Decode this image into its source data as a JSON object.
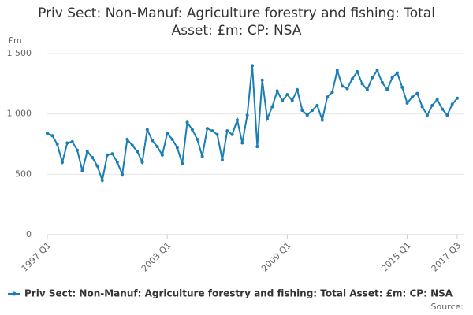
{
  "chart_data": {
    "type": "line",
    "title": "Priv Sect: Non-Manuf: Agriculture forestry and fishing: Total Asset: £m: CP: NSA",
    "y_label": "£m",
    "source_label": "Source:",
    "categories": [
      "1997 Q1",
      null,
      null,
      null,
      null,
      null,
      null,
      null,
      null,
      null,
      null,
      null,
      null,
      null,
      null,
      null,
      null,
      null,
      null,
      null,
      null,
      null,
      null,
      null,
      "2003 Q1",
      null,
      null,
      null,
      null,
      null,
      null,
      null,
      null,
      null,
      null,
      null,
      null,
      null,
      null,
      null,
      null,
      null,
      null,
      null,
      null,
      null,
      null,
      null,
      "2009 Q1",
      null,
      null,
      null,
      null,
      null,
      null,
      null,
      null,
      null,
      null,
      null,
      null,
      null,
      null,
      null,
      null,
      null,
      null,
      null,
      null,
      null,
      null,
      null,
      "2015 Q1",
      null,
      null,
      null,
      null,
      null,
      null,
      null,
      null,
      null,
      "2017 Q3"
    ],
    "series": [
      {
        "name": "Priv Sect: Non-Manuf: Agriculture forestry and fishing: Total Asset: £m: CP: NSA",
        "color": "#1a7db6",
        "values": [
          840,
          820,
          750,
          600,
          760,
          770,
          700,
          530,
          690,
          640,
          570,
          450,
          660,
          670,
          600,
          500,
          790,
          740,
          690,
          600,
          870,
          780,
          730,
          660,
          840,
          790,
          720,
          590,
          930,
          870,
          790,
          650,
          880,
          860,
          830,
          620,
          860,
          830,
          950,
          760,
          990,
          1400,
          730,
          1280,
          960,
          1060,
          1190,
          1110,
          1160,
          1110,
          1200,
          1030,
          990,
          1030,
          1070,
          950,
          1140,
          1180,
          1360,
          1230,
          1210,
          1290,
          1350,
          1250,
          1200,
          1300,
          1360,
          1260,
          1200,
          1300,
          1340,
          1220,
          1090,
          1140,
          1170,
          1060,
          990,
          1070,
          1120,
          1040,
          990,
          1080,
          1130
        ]
      }
    ],
    "ylim": [
      0,
      1500
    ],
    "yticks": [
      0,
      500,
      {
        "value": 1000,
        "label": "1 000"
      },
      {
        "value": 1500,
        "label": "1 500"
      }
    ],
    "grid": true
  }
}
